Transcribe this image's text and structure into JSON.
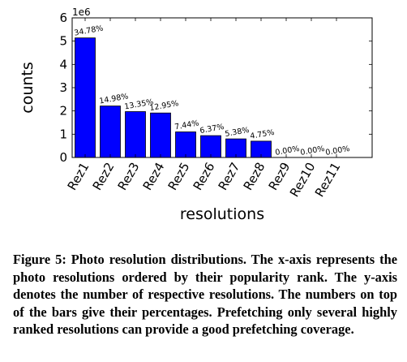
{
  "chart_data": {
    "type": "bar",
    "title": "",
    "xlabel": "resolutions",
    "ylabel": "counts",
    "y_exponent_label": "1e6",
    "ylim": [
      0,
      6
    ],
    "yticks": [
      "0",
      "1",
      "2",
      "3",
      "4",
      "5",
      "6"
    ],
    "categories": [
      "Rez1",
      "Rez2",
      "Rez3",
      "Rez4",
      "Rez5",
      "Rez6",
      "Rez7",
      "Rez8",
      "Rez9",
      "Rez10",
      "Rez11"
    ],
    "values": [
      5.14,
      2.21,
      1.97,
      1.91,
      1.1,
      0.94,
      0.8,
      0.7,
      0.0,
      0.0,
      0.0
    ],
    "bar_labels": [
      "34.78%",
      "14.98%",
      "13.35%",
      "12.95%",
      "7.44%",
      "6.37%",
      "5.38%",
      "4.75%",
      "0.00%",
      "0.00%",
      "0.00%"
    ],
    "bar_color": "#0000ff",
    "grid": false
  },
  "caption": "Figure 5: Photo resolution distributions. The x-axis represents the photo resolutions ordered by their popularity rank. The y-axis denotes the number of respective resolutions. The numbers on top of the bars give their percentages. Prefetching only several highly ranked resolutions can provide a good prefetching coverage."
}
